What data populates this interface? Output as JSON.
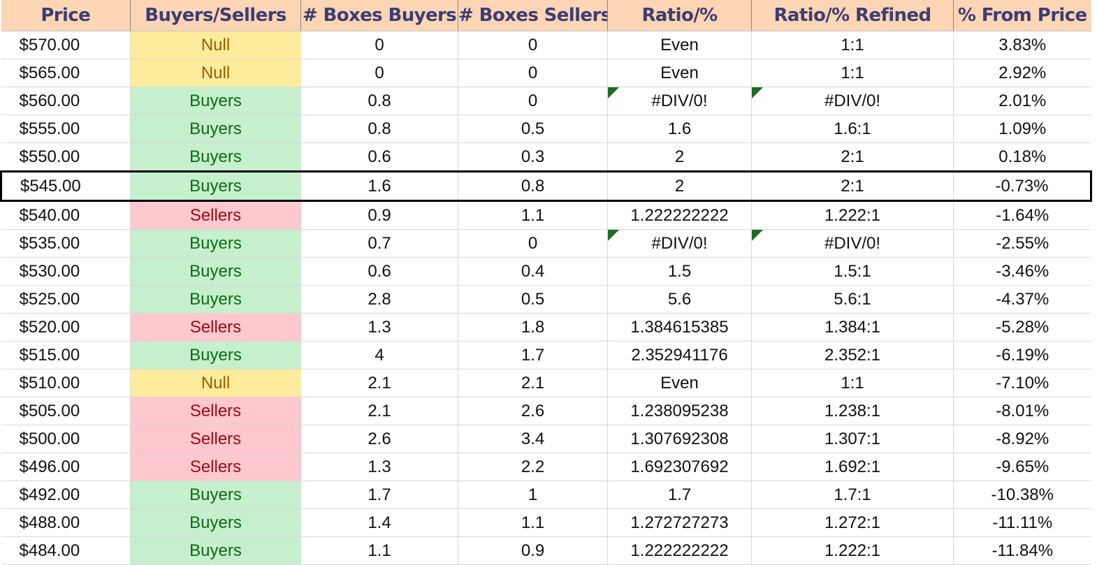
{
  "columns": [
    "Price",
    "Buyers/Sellers",
    "# Boxes Buyers",
    "# Boxes Sellers",
    "Ratio/%",
    "Ratio/% Refined",
    "% From Price"
  ],
  "rows": [
    {
      "price": "$570.00",
      "side": "Null",
      "buyers": "0",
      "sellers": "0",
      "ratio": "Even",
      "refined": "1:1",
      "from_price": "3.83%",
      "error_flag": false,
      "highlight": false
    },
    {
      "price": "$565.00",
      "side": "Null",
      "buyers": "0",
      "sellers": "0",
      "ratio": "Even",
      "refined": "1:1",
      "from_price": "2.92%",
      "error_flag": false,
      "highlight": false
    },
    {
      "price": "$560.00",
      "side": "Buyers",
      "buyers": "0.8",
      "sellers": "0",
      "ratio": "#DIV/0!",
      "refined": "#DIV/0!",
      "from_price": "2.01%",
      "error_flag": true,
      "highlight": false
    },
    {
      "price": "$555.00",
      "side": "Buyers",
      "buyers": "0.8",
      "sellers": "0.5",
      "ratio": "1.6",
      "refined": "1.6:1",
      "from_price": "1.09%",
      "error_flag": false,
      "highlight": false
    },
    {
      "price": "$550.00",
      "side": "Buyers",
      "buyers": "0.6",
      "sellers": "0.3",
      "ratio": "2",
      "refined": "2:1",
      "from_price": "0.18%",
      "error_flag": false,
      "highlight": false
    },
    {
      "price": "$545.00",
      "side": "Buyers",
      "buyers": "1.6",
      "sellers": "0.8",
      "ratio": "2",
      "refined": "2:1",
      "from_price": "-0.73%",
      "error_flag": false,
      "highlight": true
    },
    {
      "price": "$540.00",
      "side": "Sellers",
      "buyers": "0.9",
      "sellers": "1.1",
      "ratio": "1.222222222",
      "refined": "1.222:1",
      "from_price": "-1.64%",
      "error_flag": false,
      "highlight": false
    },
    {
      "price": "$535.00",
      "side": "Buyers",
      "buyers": "0.7",
      "sellers": "0",
      "ratio": "#DIV/0!",
      "refined": "#DIV/0!",
      "from_price": "-2.55%",
      "error_flag": true,
      "highlight": false
    },
    {
      "price": "$530.00",
      "side": "Buyers",
      "buyers": "0.6",
      "sellers": "0.4",
      "ratio": "1.5",
      "refined": "1.5:1",
      "from_price": "-3.46%",
      "error_flag": false,
      "highlight": false
    },
    {
      "price": "$525.00",
      "side": "Buyers",
      "buyers": "2.8",
      "sellers": "0.5",
      "ratio": "5.6",
      "refined": "5.6:1",
      "from_price": "-4.37%",
      "error_flag": false,
      "highlight": false
    },
    {
      "price": "$520.00",
      "side": "Sellers",
      "buyers": "1.3",
      "sellers": "1.8",
      "ratio": "1.384615385",
      "refined": "1.384:1",
      "from_price": "-5.28%",
      "error_flag": false,
      "highlight": false
    },
    {
      "price": "$515.00",
      "side": "Buyers",
      "buyers": "4",
      "sellers": "1.7",
      "ratio": "2.352941176",
      "refined": "2.352:1",
      "from_price": "-6.19%",
      "error_flag": false,
      "highlight": false
    },
    {
      "price": "$510.00",
      "side": "Null",
      "buyers": "2.1",
      "sellers": "2.1",
      "ratio": "Even",
      "refined": "1:1",
      "from_price": "-7.10%",
      "error_flag": false,
      "highlight": false
    },
    {
      "price": "$505.00",
      "side": "Sellers",
      "buyers": "2.1",
      "sellers": "2.6",
      "ratio": "1.238095238",
      "refined": "1.238:1",
      "from_price": "-8.01%",
      "error_flag": false,
      "highlight": false
    },
    {
      "price": "$500.00",
      "side": "Sellers",
      "buyers": "2.6",
      "sellers": "3.4",
      "ratio": "1.307692308",
      "refined": "1.307:1",
      "from_price": "-8.92%",
      "error_flag": false,
      "highlight": false
    },
    {
      "price": "$496.00",
      "side": "Sellers",
      "buyers": "1.3",
      "sellers": "2.2",
      "ratio": "1.692307692",
      "refined": "1.692:1",
      "from_price": "-9.65%",
      "error_flag": false,
      "highlight": false
    },
    {
      "price": "$492.00",
      "side": "Buyers",
      "buyers": "1.7",
      "sellers": "1",
      "ratio": "1.7",
      "refined": "1.7:1",
      "from_price": "-10.38%",
      "error_flag": false,
      "highlight": false
    },
    {
      "price": "$488.00",
      "side": "Buyers",
      "buyers": "1.4",
      "sellers": "1.1",
      "ratio": "1.272727273",
      "refined": "1.272:1",
      "from_price": "-11.11%",
      "error_flag": false,
      "highlight": false
    },
    {
      "price": "$484.00",
      "side": "Buyers",
      "buyers": "1.1",
      "sellers": "0.9",
      "ratio": "1.222222222",
      "refined": "1.222:1",
      "from_price": "-11.84%",
      "error_flag": false,
      "highlight": false
    }
  ],
  "colors": {
    "header_bg": "#fcd5b4",
    "header_text": "#3d3d73",
    "buyers_bg": "#c6efce",
    "buyers_text": "#0e6b12",
    "sellers_bg": "#ffc7ce",
    "sellers_text": "#9c0a12",
    "null_bg": "#ffeb9c",
    "null_text": "#946200",
    "error_flag": "#1f6b1f",
    "current_row_border": "#000000"
  }
}
